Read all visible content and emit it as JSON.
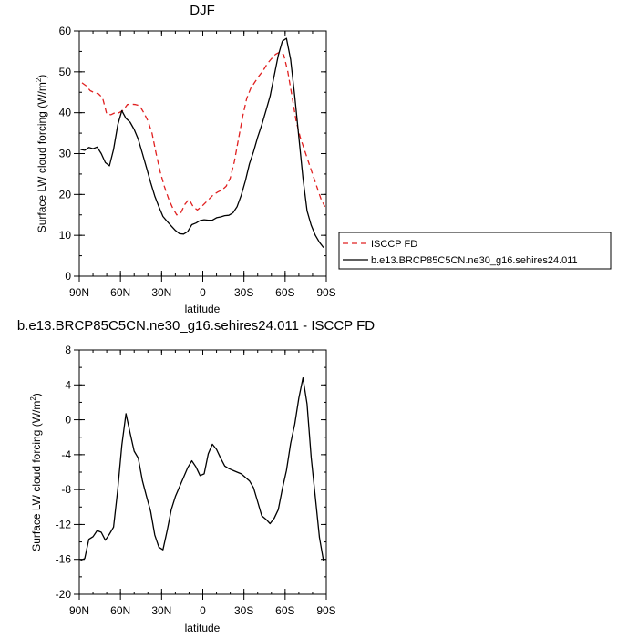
{
  "chart_data": [
    {
      "type": "line",
      "title": "DJF",
      "xlabel": "latitude",
      "ylabel_main": "Surface LW cloud forcing (W/m",
      "ylabel_sup": "2",
      "ylabel_close": ")",
      "xlim": [
        -90,
        90
      ],
      "ylim": [
        0,
        60
      ],
      "xticks": [
        {
          "value": -90,
          "label": "90N"
        },
        {
          "value": -60,
          "label": "60N"
        },
        {
          "value": -30,
          "label": "30N"
        },
        {
          "value": 0,
          "label": "0"
        },
        {
          "value": 30,
          "label": "30S"
        },
        {
          "value": 60,
          "label": "60S"
        },
        {
          "value": 90,
          "label": "90S"
        }
      ],
      "yticks": [
        0,
        10,
        20,
        30,
        40,
        50,
        60
      ],
      "legend": "right, outside plot",
      "series": [
        {
          "name": "ISCCP FD",
          "color": "#e02020",
          "dash": "dashed",
          "x": [
            -88,
            -85,
            -82,
            -79,
            -76,
            -73,
            -70,
            -67,
            -64,
            -61,
            -58,
            -55,
            -52,
            -49,
            -46,
            -43,
            -40,
            -37,
            -34,
            -31,
            -28,
            -25,
            -22,
            -19,
            -16,
            -13,
            -10,
            -7,
            -4,
            -1,
            2,
            5,
            8,
            11,
            14,
            17,
            20,
            23,
            26,
            29,
            32,
            35,
            38,
            41,
            44,
            47,
            50,
            53,
            56,
            59,
            62,
            65,
            68,
            71,
            74,
            77,
            80,
            83,
            86,
            89
          ],
          "y": [
            47.3,
            46.6,
            45.4,
            44.9,
            44.6,
            43.6,
            39.7,
            39.5,
            40.0,
            40.0,
            40.6,
            42.0,
            42.1,
            42.0,
            41.7,
            40.0,
            38.0,
            35.0,
            30.0,
            25.5,
            22.0,
            19.0,
            16.7,
            15.0,
            15.5,
            17.6,
            18.8,
            17.0,
            16.2,
            17.0,
            18.0,
            19.0,
            20.0,
            20.6,
            21.1,
            22.0,
            24.0,
            28.0,
            33.5,
            39.0,
            43.5,
            46.0,
            47.5,
            49.0,
            50.3,
            52.0,
            53.2,
            54.3,
            54.8,
            54.2,
            50.0,
            44.0,
            38.0,
            34.0,
            31.0,
            28.0,
            25.0,
            22.0,
            19.0,
            17.0
          ]
        },
        {
          "name": "b.e13.BRCP85C5CN.ne30_g16.sehires24.011",
          "color": "#000000",
          "dash": "solid",
          "x": [
            -89,
            -86,
            -83,
            -80,
            -77,
            -74,
            -71,
            -68,
            -65,
            -62,
            -59,
            -56,
            -53,
            -50,
            -47,
            -44,
            -41,
            -38,
            -35,
            -32,
            -29,
            -26,
            -23,
            -20,
            -17,
            -14,
            -11,
            -8,
            -5,
            -2,
            1,
            4,
            7,
            10,
            13,
            16,
            19,
            22,
            25,
            28,
            31,
            34,
            37,
            40,
            43,
            46,
            49,
            52,
            55,
            58,
            61,
            64,
            67,
            70,
            73,
            76,
            79,
            82,
            85,
            88
          ],
          "y": [
            31.0,
            30.8,
            31.5,
            31.2,
            31.6,
            30.0,
            27.8,
            27.0,
            31.0,
            37.0,
            40.5,
            38.6,
            37.7,
            35.9,
            33.5,
            30.0,
            26.5,
            22.9,
            19.6,
            17.0,
            14.6,
            13.4,
            12.3,
            11.2,
            10.4,
            10.3,
            10.9,
            12.6,
            13.0,
            13.6,
            13.8,
            13.7,
            13.7,
            14.3,
            14.5,
            14.8,
            14.9,
            15.5,
            17.0,
            19.8,
            23.3,
            27.5,
            30.5,
            34.0,
            37.0,
            40.5,
            44.0,
            49.0,
            54.0,
            57.5,
            58.2,
            53.0,
            44.0,
            34.0,
            24.0,
            16.0,
            12.5,
            10.0,
            8.3,
            7.0
          ]
        }
      ]
    },
    {
      "type": "line",
      "title": "b.e13.BRCP85C5CN.ne30_g16.sehires24.011 - ISCCP FD",
      "xlabel": "latitude",
      "ylabel_main": "Surface LW cloud forcing (W/m",
      "ylabel_sup": "2",
      "ylabel_close": ")",
      "xlim": [
        -90,
        90
      ],
      "ylim": [
        -20,
        8
      ],
      "xticks": [
        {
          "value": -90,
          "label": "90N"
        },
        {
          "value": -60,
          "label": "60N"
        },
        {
          "value": -30,
          "label": "30N"
        },
        {
          "value": 0,
          "label": "0"
        },
        {
          "value": 30,
          "label": "30S"
        },
        {
          "value": 60,
          "label": "60S"
        },
        {
          "value": 90,
          "label": "90S"
        }
      ],
      "yticks": [
        -20,
        -16,
        -12,
        -8,
        -4,
        0,
        4,
        8
      ],
      "series": [
        {
          "color": "#000000",
          "dash": "solid",
          "x": [
            -89,
            -86,
            -83,
            -80,
            -77,
            -74,
            -71,
            -68,
            -65,
            -62,
            -59,
            -56,
            -53,
            -50,
            -47,
            -44,
            -41,
            -38,
            -35,
            -32,
            -29,
            -26,
            -23,
            -20,
            -17,
            -14,
            -11,
            -8,
            -5,
            -2,
            1,
            4,
            7,
            10,
            13,
            16,
            19,
            22,
            25,
            28,
            31,
            34,
            37,
            40,
            43,
            46,
            49,
            52,
            55,
            58,
            61,
            64,
            67,
            70,
            73,
            76,
            79,
            82,
            85,
            88
          ],
          "y": [
            -16.1,
            -15.9,
            -13.7,
            -13.4,
            -12.7,
            -12.9,
            -13.8,
            -13.1,
            -12.3,
            -8.0,
            -2.9,
            0.7,
            -1.5,
            -3.6,
            -4.4,
            -7.0,
            -8.8,
            -10.5,
            -13.2,
            -14.6,
            -14.9,
            -12.7,
            -10.3,
            -8.8,
            -7.7,
            -6.6,
            -5.5,
            -4.7,
            -5.4,
            -6.4,
            -6.2,
            -3.9,
            -2.8,
            -3.4,
            -4.4,
            -5.3,
            -5.6,
            -5.8,
            -6.0,
            -6.2,
            -6.6,
            -7.0,
            -7.8,
            -9.4,
            -11.0,
            -11.4,
            -11.9,
            -11.3,
            -10.3,
            -7.9,
            -5.8,
            -2.7,
            -0.5,
            2.5,
            4.8,
            1.8,
            -4.3,
            -8.9,
            -13.5,
            -16.2
          ]
        }
      ]
    }
  ]
}
